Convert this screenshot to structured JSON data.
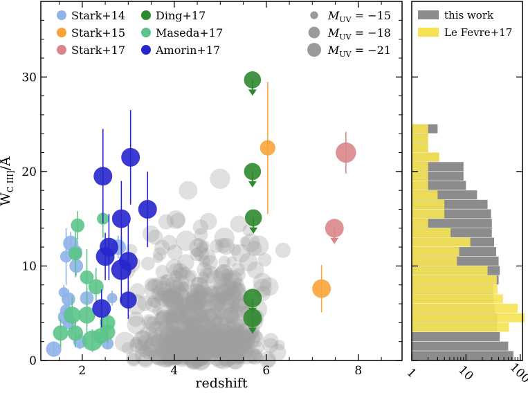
{
  "chart_data": [
    {
      "type": "scatter",
      "xlabel": "redshift",
      "ylabel_main": "W",
      "ylabel_sub": "C III]",
      "ylabel_unit": "/Å",
      "xlim": [
        1.1,
        8.95
      ],
      "ylim": [
        0,
        38
      ],
      "xticks": [
        2,
        4,
        6,
        8
      ],
      "yticks": [
        0,
        10,
        20,
        30
      ],
      "xtick_labels": [
        "2",
        "4",
        "6",
        "8"
      ],
      "ytick_labels": [
        "0",
        "10",
        "20",
        "30"
      ],
      "legend": {
        "sources": [
          {
            "key": "stark14",
            "label": "Stark+14",
            "color": "#8fb2ea"
          },
          {
            "key": "stark15",
            "label": "Stark+15",
            "color": "#f8a43a"
          },
          {
            "key": "stark17",
            "label": "Stark+17",
            "color": "#d9868a"
          },
          {
            "key": "ding17",
            "label": "Ding+17",
            "color": "#2f8a2f"
          },
          {
            "key": "maseda17",
            "label": "Maseda+17",
            "color": "#5cc48a"
          },
          {
            "key": "amorin17",
            "label": "Amorin+17",
            "color": "#2626cc"
          }
        ],
        "sizes": [
          {
            "label": "M",
            "sub": "UV",
            "value": " = −15",
            "muv": -15
          },
          {
            "label": "M",
            "sub": "UV",
            "value": " = −18",
            "muv": -18
          },
          {
            "label": "M",
            "sub": "UV",
            "value": " = −21",
            "muv": -21
          }
        ]
      },
      "this_work_color": "#9e9e9e",
      "series": [
        {
          "name": "Stark+14",
          "color": "#8fb2ea",
          "points": [
            {
              "x": 1.75,
              "y": 12.4,
              "yerr": 1.2,
              "muv": -18
            },
            {
              "x": 1.85,
              "y": 11.5,
              "yerr": 1.0,
              "muv": -17
            },
            {
              "x": 1.65,
              "y": 11.0,
              "yerr": 3.0,
              "muv": -16
            },
            {
              "x": 1.87,
              "y": 10.0,
              "yerr": 1.0,
              "muv": -17
            },
            {
              "x": 2.78,
              "y": 12.0,
              "yerr": 1.2,
              "muv": -18
            },
            {
              "x": 1.6,
              "y": 7.2,
              "yerr": 0.8,
              "muv": -15
            },
            {
              "x": 1.7,
              "y": 6.5,
              "yerr": 1.0,
              "muv": -17
            },
            {
              "x": 2.1,
              "y": 6.6,
              "yerr": 1.0,
              "muv": -17
            },
            {
              "x": 2.65,
              "y": 6.6,
              "yerr": 0.8,
              "muv": -15
            },
            {
              "x": 1.62,
              "y": 4.6,
              "yerr": 1.0,
              "muv": -17
            },
            {
              "x": 1.72,
              "y": 4.0,
              "yerr": 1.0,
              "muv": -17
            },
            {
              "x": 1.65,
              "y": 5.3,
              "yerr": 0.8,
              "muv": -16
            },
            {
              "x": 1.95,
              "y": 2.0,
              "yerr": 0.8,
              "muv": -17
            },
            {
              "x": 2.55,
              "y": 1.8,
              "yerr": 0.6,
              "muv": -16
            },
            {
              "x": 1.38,
              "y": 1.2,
              "yerr": 0.8,
              "muv": -18
            }
          ]
        },
        {
          "name": "Stark+15",
          "color": "#f8a43a",
          "points": [
            {
              "x": 6.03,
              "y": 22.5,
              "yerr": 7.0,
              "muv": -18
            },
            {
              "x": 7.2,
              "y": 7.6,
              "yerr": 2.5,
              "muv": -20
            }
          ]
        },
        {
          "name": "Stark+17",
          "color": "#d9868a",
          "points": [
            {
              "x": 7.73,
              "y": 22.0,
              "yerr": 2.2,
              "muv": -21
            },
            {
              "x": 7.48,
              "y": 14.0,
              "upper": true,
              "muv": -20
            }
          ]
        },
        {
          "name": "Ding+17",
          "color": "#2f8a2f",
          "points": [
            {
              "x": 5.7,
              "y": 29.7,
              "upper": true,
              "muv": -19
            },
            {
              "x": 5.7,
              "y": 20.0,
              "upper": true,
              "muv": -19
            },
            {
              "x": 5.72,
              "y": 15.1,
              "upper": true,
              "muv": -19
            },
            {
              "x": 5.7,
              "y": 6.6,
              "upper": true,
              "muv": -20
            },
            {
              "x": 5.7,
              "y": 4.5,
              "upper": true,
              "muv": -20
            }
          ]
        },
        {
          "name": "Maseda+17",
          "color": "#5cc48a",
          "points": [
            {
              "x": 1.9,
              "y": 14.3,
              "yerr": 1.5,
              "muv": -17
            },
            {
              "x": 1.85,
              "y": 11.3,
              "yerr": 2.5,
              "muv": -17
            },
            {
              "x": 2.45,
              "y": 15.0,
              "yerr": 2.0,
              "muv": -16
            },
            {
              "x": 2.1,
              "y": 8.8,
              "yerr": 3.0,
              "muv": -17
            },
            {
              "x": 2.3,
              "y": 7.8,
              "yerr": 2.0,
              "muv": -18
            },
            {
              "x": 1.78,
              "y": 4.8,
              "yerr": 2.0,
              "muv": -19
            },
            {
              "x": 2.1,
              "y": 4.8,
              "yerr": 2.0,
              "muv": -19
            },
            {
              "x": 2.55,
              "y": 4.0,
              "yerr": 1.5,
              "muv": -18
            },
            {
              "x": 1.53,
              "y": 2.9,
              "yerr": 1.5,
              "muv": -18
            },
            {
              "x": 1.85,
              "y": 2.9,
              "yerr": 1.5,
              "muv": -18
            },
            {
              "x": 2.55,
              "y": 3.0,
              "yerr": 1.2,
              "muv": -18
            },
            {
              "x": 2.4,
              "y": 2.6,
              "yerr": 1.0,
              "muv": -18
            },
            {
              "x": 2.22,
              "y": 2.1,
              "yerr": 1.2,
              "muv": -21
            }
          ]
        },
        {
          "name": "Amorin+17",
          "color": "#2626cc",
          "points": [
            {
              "x": 3.05,
              "y": 21.5,
              "yerr": 5.0,
              "muv": -20
            },
            {
              "x": 2.45,
              "y": 19.5,
              "yerr": 5.0,
              "muv": -20
            },
            {
              "x": 3.42,
              "y": 16.0,
              "yerr": 4.0,
              "muv": -20
            },
            {
              "x": 2.85,
              "y": 15.0,
              "yerr": 4.0,
              "muv": -20
            },
            {
              "x": 2.58,
              "y": 12.0,
              "yerr": 3.5,
              "muv": -20
            },
            {
              "x": 2.5,
              "y": 11.0,
              "yerr": 2.5,
              "muv": -20
            },
            {
              "x": 3.0,
              "y": 10.5,
              "yerr": 4.0,
              "muv": -20
            },
            {
              "x": 2.85,
              "y": 9.6,
              "yerr": 3.5,
              "muv": -21
            },
            {
              "x": 3.0,
              "y": 6.4,
              "yerr": 2.0,
              "muv": -19
            },
            {
              "x": 2.42,
              "y": 5.5,
              "yerr": 2.0,
              "muv": -20
            }
          ]
        }
      ]
    },
    {
      "type": "bar",
      "orientation": "horizontal",
      "xscale": "log",
      "xlim": [
        1,
        110
      ],
      "xticks": [
        1,
        10,
        100
      ],
      "xtick_labels": [
        "1",
        "10",
        "100"
      ],
      "ylim": [
        0,
        38
      ],
      "bin_edges": [
        0,
        1,
        2,
        3,
        4,
        5,
        6,
        7,
        8,
        9,
        10,
        11,
        12,
        13,
        14,
        15,
        16,
        17,
        18,
        19,
        20,
        21,
        22,
        23,
        24,
        25
      ],
      "series": [
        {
          "name": "this work",
          "color": "#8c8c8c",
          "values": [
            75,
            60,
            42,
            38,
            38,
            34,
            32,
            32,
            40,
            42,
            40,
            36,
            33,
            30,
            30,
            29,
            25,
            16,
            10,
            9,
            9,
            3.2,
            2,
            2,
            3
          ]
        },
        {
          "name": "Le Fevre+17",
          "color": "#f6e253",
          "values": [
            0,
            0,
            0,
            62,
            120,
            90,
            48,
            38,
            37,
            25,
            6.8,
            7.5,
            12,
            5.2,
            2,
            4,
            4,
            3,
            2,
            2,
            2,
            3.2,
            2,
            2,
            2
          ]
        }
      ],
      "legend": [
        "this work",
        "Le Fevre+17"
      ]
    }
  ]
}
